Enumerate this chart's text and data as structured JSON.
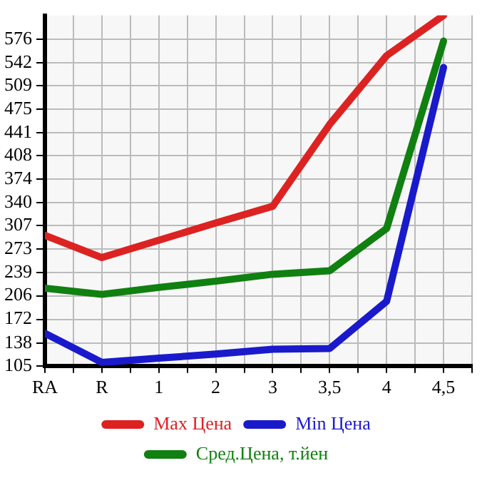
{
  "chart_data": {
    "type": "line",
    "categories": [
      "RA",
      "R",
      "1",
      "2",
      "3",
      "3,5",
      "4",
      "4,5"
    ],
    "series": [
      {
        "name": "Max Цена",
        "color": "#dd2222",
        "values": [
          293,
          261,
          286,
          311,
          335,
          453,
          552,
          610
        ]
      },
      {
        "name": "Min Цена",
        "color": "#1a1acc",
        "values": [
          152,
          110,
          116,
          122,
          129,
          130,
          198,
          535
        ]
      },
      {
        "name": "Сред.Цена, т.йен",
        "color": "#108010",
        "values": [
          217,
          208,
          218,
          227,
          237,
          242,
          303,
          573
        ]
      }
    ],
    "ylim": [
      105,
      610
    ],
    "yticks": [
      105,
      138,
      172,
      206,
      239,
      273,
      307,
      340,
      374,
      408,
      441,
      475,
      509,
      542,
      576
    ],
    "grid": true,
    "legend": "bottom",
    "marker": "none",
    "line_style": "solid"
  }
}
